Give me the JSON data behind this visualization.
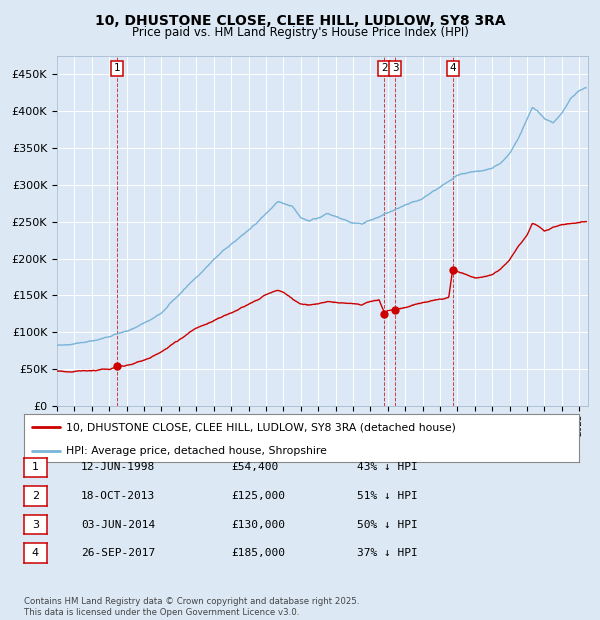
{
  "title_line1": "10, DHUSTONE CLOSE, CLEE HILL, LUDLOW, SY8 3RA",
  "title_line2": "Price paid vs. HM Land Registry's House Price Index (HPI)",
  "bg_color": "#dce9f5",
  "plot_bg_color": "#dce8f5",
  "hpi_color": "#7ab4d8",
  "price_color": "#cc0000",
  "ylim": [
    0,
    475000
  ],
  "yticks": [
    0,
    50000,
    100000,
    150000,
    200000,
    250000,
    300000,
    350000,
    400000,
    450000
  ],
  "xlim_start": 1995.0,
  "xlim_end": 2025.5,
  "transactions": [
    {
      "num": 1,
      "date_dec": 1998.45,
      "price": 54400,
      "label": "1"
    },
    {
      "num": 2,
      "date_dec": 2013.79,
      "price": 125000,
      "label": "2"
    },
    {
      "num": 3,
      "date_dec": 2014.42,
      "price": 130000,
      "label": "3"
    },
    {
      "num": 4,
      "date_dec": 2017.73,
      "price": 185000,
      "label": "4"
    }
  ],
  "legend_entries": [
    {
      "label": "10, DHUSTONE CLOSE, CLEE HILL, LUDLOW, SY8 3RA (detached house)",
      "color": "#cc0000"
    },
    {
      "label": "HPI: Average price, detached house, Shropshire",
      "color": "#7ab4d8"
    }
  ],
  "table_rows": [
    {
      "num": "1",
      "date": "12-JUN-1998",
      "price": "£54,400",
      "pct": "43% ↓ HPI"
    },
    {
      "num": "2",
      "date": "18-OCT-2013",
      "price": "£125,000",
      "pct": "51% ↓ HPI"
    },
    {
      "num": "3",
      "date": "03-JUN-2014",
      "price": "£130,000",
      "pct": "50% ↓ HPI"
    },
    {
      "num": "4",
      "date": "26-SEP-2017",
      "price": "£185,000",
      "pct": "37% ↓ HPI"
    }
  ],
  "footer": "Contains HM Land Registry data © Crown copyright and database right 2025.\nThis data is licensed under the Open Government Licence v3.0.",
  "hpi_anchors": [
    [
      1995.0,
      82000
    ],
    [
      1996.0,
      86000
    ],
    [
      1997.0,
      90000
    ],
    [
      1998.0,
      95000
    ],
    [
      1999.0,
      102000
    ],
    [
      2000.0,
      112000
    ],
    [
      2001.0,
      125000
    ],
    [
      2002.0,
      150000
    ],
    [
      2003.0,
      175000
    ],
    [
      2004.0,
      200000
    ],
    [
      2005.0,
      220000
    ],
    [
      2006.0,
      240000
    ],
    [
      2007.0,
      262000
    ],
    [
      2007.7,
      278000
    ],
    [
      2008.5,
      270000
    ],
    [
      2009.0,
      252000
    ],
    [
      2009.5,
      248000
    ],
    [
      2010.0,
      252000
    ],
    [
      2010.5,
      257000
    ],
    [
      2011.0,
      252000
    ],
    [
      2011.5,
      248000
    ],
    [
      2012.0,
      242000
    ],
    [
      2012.5,
      240000
    ],
    [
      2013.0,
      245000
    ],
    [
      2013.5,
      250000
    ],
    [
      2014.0,
      255000
    ],
    [
      2014.5,
      260000
    ],
    [
      2015.0,
      265000
    ],
    [
      2015.5,
      270000
    ],
    [
      2016.0,
      275000
    ],
    [
      2016.5,
      282000
    ],
    [
      2017.0,
      288000
    ],
    [
      2017.5,
      295000
    ],
    [
      2018.0,
      302000
    ],
    [
      2018.5,
      305000
    ],
    [
      2019.0,
      308000
    ],
    [
      2019.5,
      310000
    ],
    [
      2020.0,
      312000
    ],
    [
      2020.5,
      318000
    ],
    [
      2021.0,
      330000
    ],
    [
      2021.5,
      350000
    ],
    [
      2022.0,
      375000
    ],
    [
      2022.3,
      392000
    ],
    [
      2022.6,
      388000
    ],
    [
      2023.0,
      378000
    ],
    [
      2023.5,
      372000
    ],
    [
      2024.0,
      385000
    ],
    [
      2024.5,
      405000
    ],
    [
      2025.0,
      415000
    ],
    [
      2025.3,
      418000
    ]
  ],
  "price_anchors": [
    [
      1995.0,
      47500
    ],
    [
      1996.0,
      48000
    ],
    [
      1997.0,
      49000
    ],
    [
      1998.0,
      50000
    ],
    [
      1998.45,
      54400
    ],
    [
      1999.0,
      57000
    ],
    [
      2000.0,
      65000
    ],
    [
      2001.0,
      76000
    ],
    [
      2002.0,
      92000
    ],
    [
      2003.0,
      108000
    ],
    [
      2004.0,
      118000
    ],
    [
      2005.0,
      128000
    ],
    [
      2006.0,
      140000
    ],
    [
      2007.0,
      152000
    ],
    [
      2007.7,
      157000
    ],
    [
      2008.0,
      155000
    ],
    [
      2008.5,
      148000
    ],
    [
      2009.0,
      140000
    ],
    [
      2009.5,
      138000
    ],
    [
      2010.0,
      140000
    ],
    [
      2010.5,
      143000
    ],
    [
      2011.0,
      142000
    ],
    [
      2011.5,
      140000
    ],
    [
      2012.0,
      138000
    ],
    [
      2012.5,
      136000
    ],
    [
      2013.0,
      140000
    ],
    [
      2013.5,
      142000
    ],
    [
      2013.79,
      125000
    ],
    [
      2013.85,
      125000
    ],
    [
      2014.0,
      127000
    ],
    [
      2014.42,
      130000
    ],
    [
      2014.5,
      130000
    ],
    [
      2015.0,
      133000
    ],
    [
      2015.5,
      136000
    ],
    [
      2016.0,
      138000
    ],
    [
      2016.5,
      140000
    ],
    [
      2017.0,
      143000
    ],
    [
      2017.5,
      146000
    ],
    [
      2017.73,
      185000
    ],
    [
      2017.8,
      185000
    ],
    [
      2018.0,
      182000
    ],
    [
      2018.5,
      178000
    ],
    [
      2019.0,
      175000
    ],
    [
      2019.5,
      177000
    ],
    [
      2020.0,
      180000
    ],
    [
      2020.5,
      188000
    ],
    [
      2021.0,
      200000
    ],
    [
      2021.5,
      218000
    ],
    [
      2022.0,
      232000
    ],
    [
      2022.3,
      248000
    ],
    [
      2022.6,
      245000
    ],
    [
      2023.0,
      238000
    ],
    [
      2023.5,
      242000
    ],
    [
      2024.0,
      246000
    ],
    [
      2024.5,
      248000
    ],
    [
      2025.3,
      250000
    ]
  ]
}
